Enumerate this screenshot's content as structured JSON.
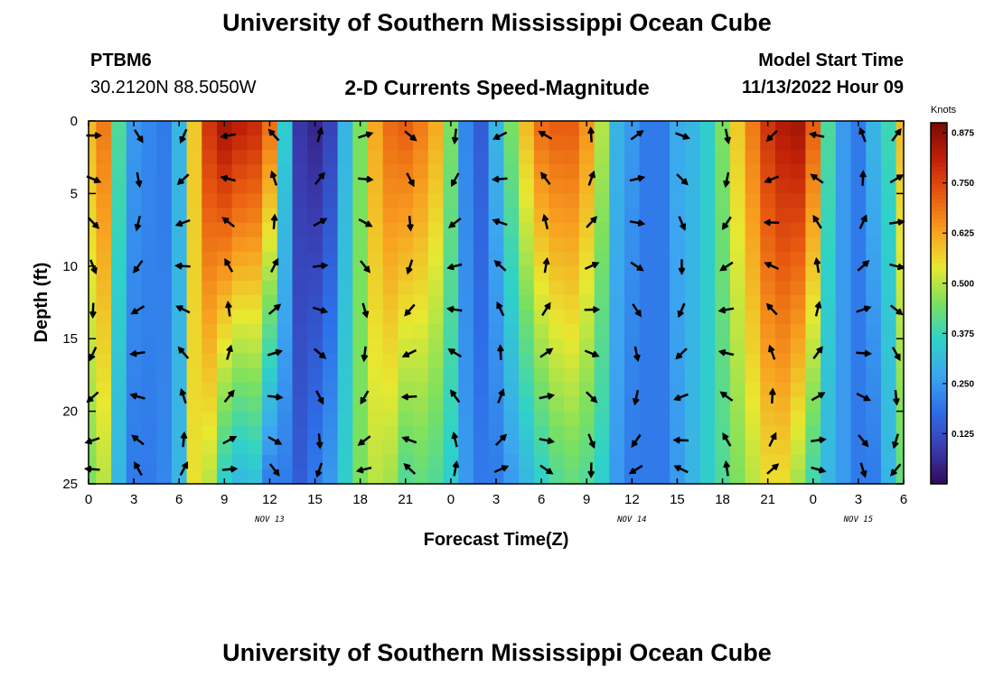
{
  "header": {
    "title": "University of Southern Mississippi Ocean Cube",
    "station": "PTBM6",
    "coords": "30.2120N  88.5050W",
    "chart_title": "2-D Currents Speed-Magnitude",
    "model_label": "Model Start Time",
    "model_time": "11/13/2022 Hour 09"
  },
  "footer": {
    "title": "University of Southern Mississippi Ocean Cube"
  },
  "chart_data": {
    "type": "heatmap",
    "title": "2-D Currents Speed-Magnitude",
    "xlabel": "Forecast Time(Z)",
    "ylabel": "Depth (ft)",
    "x_unit": "hours from 0Z Nov 13",
    "xlim": [
      0,
      54
    ],
    "ylim": [
      0,
      25
    ],
    "y_inverted": true,
    "x_ticks": [
      {
        "t": 0,
        "label": "0"
      },
      {
        "t": 3,
        "label": "3"
      },
      {
        "t": 6,
        "label": "6"
      },
      {
        "t": 9,
        "label": "9"
      },
      {
        "t": 12,
        "label": "12"
      },
      {
        "t": 15,
        "label": "15"
      },
      {
        "t": 18,
        "label": "18"
      },
      {
        "t": 21,
        "label": "21"
      },
      {
        "t": 24,
        "label": "0"
      },
      {
        "t": 27,
        "label": "3"
      },
      {
        "t": 30,
        "label": "6"
      },
      {
        "t": 33,
        "label": "9"
      },
      {
        "t": 36,
        "label": "12"
      },
      {
        "t": 39,
        "label": "15"
      },
      {
        "t": 42,
        "label": "18"
      },
      {
        "t": 45,
        "label": "21"
      },
      {
        "t": 48,
        "label": "0"
      },
      {
        "t": 51,
        "label": "3"
      },
      {
        "t": 54,
        "label": "6"
      }
    ],
    "date_labels": [
      {
        "t": 12,
        "label": "NOV 13"
      },
      {
        "t": 36,
        "label": "NOV 14"
      },
      {
        "t": 51,
        "label": "NOV 15"
      }
    ],
    "y_ticks": [
      0,
      5,
      10,
      15,
      20,
      25
    ],
    "colorbar": {
      "label": "Knots",
      "ticks": [
        "0.875",
        "0.750",
        "0.625",
        "0.500",
        "0.375",
        "0.250",
        "0.125"
      ],
      "tick_values": [
        0.875,
        0.75,
        0.625,
        0.5,
        0.375,
        0.25,
        0.125
      ],
      "min": 0.0,
      "max": 0.9,
      "colors": [
        "#300a5c",
        "#3a3cb0",
        "#2d6ee8",
        "#3ca6f0",
        "#2fd2c8",
        "#7ae060",
        "#e8e830",
        "#f8a020",
        "#e85a10",
        "#c02008",
        "#7a0a05"
      ]
    },
    "speed_profile": {
      "t": [
        0,
        1,
        2,
        3,
        4,
        5,
        6,
        7,
        8,
        9,
        10,
        11,
        12,
        13,
        14,
        15,
        16,
        17,
        18,
        19,
        20,
        21,
        22,
        23,
        24,
        25,
        26,
        27,
        28,
        29,
        30,
        31,
        32,
        33,
        34,
        35,
        36,
        37,
        38,
        39,
        40,
        41,
        42,
        43,
        44,
        45,
        46,
        47,
        48,
        49,
        50,
        51,
        52,
        53,
        54
      ],
      "surface_knots": [
        0.6,
        0.68,
        0.4,
        0.25,
        0.22,
        0.2,
        0.3,
        0.58,
        0.78,
        0.85,
        0.82,
        0.8,
        0.7,
        0.35,
        0.08,
        0.05,
        0.1,
        0.3,
        0.45,
        0.62,
        0.7,
        0.72,
        0.68,
        0.62,
        0.45,
        0.22,
        0.15,
        0.3,
        0.45,
        0.6,
        0.7,
        0.72,
        0.72,
        0.65,
        0.5,
        0.3,
        0.25,
        0.2,
        0.2,
        0.28,
        0.3,
        0.35,
        0.45,
        0.58,
        0.68,
        0.78,
        0.83,
        0.85,
        0.72,
        0.4,
        0.25,
        0.2,
        0.3,
        0.38,
        0.6
      ],
      "bottom_knots": [
        0.45,
        0.5,
        0.3,
        0.2,
        0.2,
        0.22,
        0.3,
        0.55,
        0.5,
        0.35,
        0.3,
        0.32,
        0.2,
        0.2,
        0.15,
        0.2,
        0.25,
        0.35,
        0.45,
        0.5,
        0.48,
        0.4,
        0.42,
        0.4,
        0.35,
        0.25,
        0.2,
        0.2,
        0.25,
        0.3,
        0.35,
        0.4,
        0.42,
        0.4,
        0.35,
        0.25,
        0.2,
        0.2,
        0.2,
        0.25,
        0.3,
        0.35,
        0.4,
        0.45,
        0.5,
        0.55,
        0.55,
        0.48,
        0.38,
        0.3,
        0.25,
        0.2,
        0.2,
        0.3,
        0.42
      ]
    }
  }
}
